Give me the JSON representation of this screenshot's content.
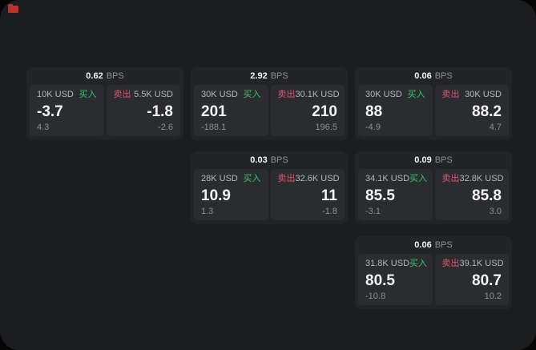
{
  "board": {
    "bps_unit": "BPS",
    "buy_label": "买入",
    "sell_label": "卖出",
    "colors": {
      "buy_green": "#3cc472",
      "sell_red": "#dd5570",
      "panel_bg": "#1c1d1f",
      "card_bg": "#232427",
      "tile_bg": "#2b2c2f",
      "corner_icon_red": "#b7352c"
    },
    "cards": [
      {
        "spread_bps": "0.62",
        "buy": {
          "size": "10K USD",
          "price": "-3.7",
          "change": "4.3"
        },
        "sell": {
          "size": "5.5K USD",
          "price": "-1.8",
          "change": "-2.6"
        }
      },
      {
        "spread_bps": "2.92",
        "buy": {
          "size": "30K USD",
          "price": "201",
          "change": "-188.1"
        },
        "sell": {
          "size": "30.1K USD",
          "price": "210",
          "change": "196.5"
        }
      },
      {
        "spread_bps": "0.06",
        "buy": {
          "size": "30K USD",
          "price": "88",
          "change": "-4.9"
        },
        "sell": {
          "size": "30K USD",
          "price": "88.2",
          "change": "4.7"
        }
      },
      {
        "spread_bps": "0.03",
        "buy": {
          "size": "28K USD",
          "price": "10.9",
          "change": "1.3"
        },
        "sell": {
          "size": "32.6K USD",
          "price": "11",
          "change": "-1.8"
        }
      },
      {
        "spread_bps": "0.09",
        "buy": {
          "size": "34.1K USD",
          "price": "85.5",
          "change": "-3.1"
        },
        "sell": {
          "size": "32.8K USD",
          "price": "85.8",
          "change": "3.0"
        }
      },
      {
        "spread_bps": "0.06",
        "buy": {
          "size": "31.8K USD",
          "price": "80.5",
          "change": "-10.8"
        },
        "sell": {
          "size": "39.1K USD",
          "price": "80.7",
          "change": "10.2"
        }
      }
    ]
  }
}
